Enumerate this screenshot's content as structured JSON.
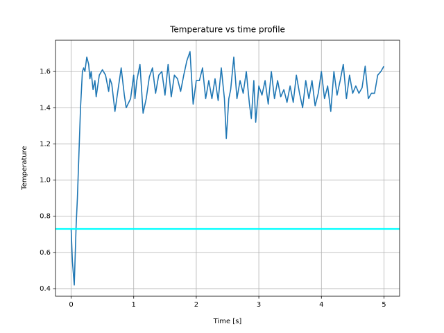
{
  "chart_data": {
    "type": "line",
    "title": "Temperature vs time profile",
    "x_label": "Time [s]",
    "y_label": "Temperature",
    "xlim": [
      -0.25,
      5.25
    ],
    "ylim": [
      0.358,
      1.773
    ],
    "xticks": [
      0,
      1,
      2,
      3,
      4,
      5
    ],
    "yticks": [
      0.4,
      0.6,
      0.8,
      {
        "value": 1,
        "label": "1.0"
      },
      1.2,
      1.4,
      1.6
    ],
    "grid": true,
    "hline": {
      "value": 0.73,
      "color": "#00ffff"
    },
    "x": [
      0,
      0.02,
      0.05,
      0.08,
      0.1,
      0.15,
      0.18,
      0.2,
      0.22,
      0.25,
      0.28,
      0.3,
      0.32,
      0.35,
      0.38,
      0.4,
      0.45,
      0.5,
      0.55,
      0.6,
      0.62,
      0.65,
      0.7,
      0.75,
      0.8,
      0.85,
      0.88,
      0.95,
      1.0,
      1.02,
      1.05,
      1.1,
      1.15,
      1.2,
      1.25,
      1.3,
      1.35,
      1.4,
      1.45,
      1.5,
      1.55,
      1.6,
      1.65,
      1.7,
      1.75,
      1.8,
      1.85,
      1.9,
      1.95,
      2.0,
      2.05,
      2.1,
      2.15,
      2.2,
      2.25,
      2.3,
      2.35,
      2.4,
      2.45,
      2.48,
      2.52,
      2.55,
      2.6,
      2.65,
      2.7,
      2.75,
      2.8,
      2.85,
      2.88,
      2.92,
      2.95,
      3.0,
      3.05,
      3.1,
      3.15,
      3.2,
      3.25,
      3.3,
      3.35,
      3.4,
      3.45,
      3.5,
      3.55,
      3.6,
      3.65,
      3.7,
      3.75,
      3.8,
      3.85,
      3.9,
      3.95,
      4.0,
      4.05,
      4.1,
      4.15,
      4.2,
      4.25,
      4.3,
      4.35,
      4.4,
      4.45,
      4.5,
      4.55,
      4.6,
      4.65,
      4.7,
      4.75,
      4.8,
      4.85,
      4.9,
      4.95,
      5.0
    ],
    "series": [
      {
        "color": "#1f77b4",
        "values": [
          0.73,
          0.55,
          0.42,
          0.75,
          0.9,
          1.4,
          1.6,
          1.62,
          1.6,
          1.68,
          1.64,
          1.56,
          1.6,
          1.5,
          1.55,
          1.46,
          1.58,
          1.61,
          1.58,
          1.49,
          1.56,
          1.53,
          1.38,
          1.5,
          1.62,
          1.47,
          1.4,
          1.45,
          1.58,
          1.45,
          1.55,
          1.64,
          1.37,
          1.45,
          1.57,
          1.62,
          1.48,
          1.58,
          1.6,
          1.47,
          1.64,
          1.46,
          1.58,
          1.56,
          1.49,
          1.58,
          1.66,
          1.71,
          1.42,
          1.55,
          1.55,
          1.62,
          1.45,
          1.55,
          1.45,
          1.56,
          1.44,
          1.62,
          1.45,
          1.23,
          1.45,
          1.5,
          1.68,
          1.45,
          1.55,
          1.48,
          1.6,
          1.42,
          1.34,
          1.55,
          1.32,
          1.52,
          1.47,
          1.55,
          1.42,
          1.6,
          1.45,
          1.55,
          1.46,
          1.5,
          1.43,
          1.52,
          1.43,
          1.58,
          1.48,
          1.4,
          1.55,
          1.45,
          1.55,
          1.41,
          1.48,
          1.6,
          1.45,
          1.52,
          1.38,
          1.6,
          1.47,
          1.55,
          1.64,
          1.45,
          1.58,
          1.48,
          1.52,
          1.48,
          1.51,
          1.63,
          1.45,
          1.48,
          1.48,
          1.58,
          1.6,
          1.63
        ]
      }
    ]
  }
}
